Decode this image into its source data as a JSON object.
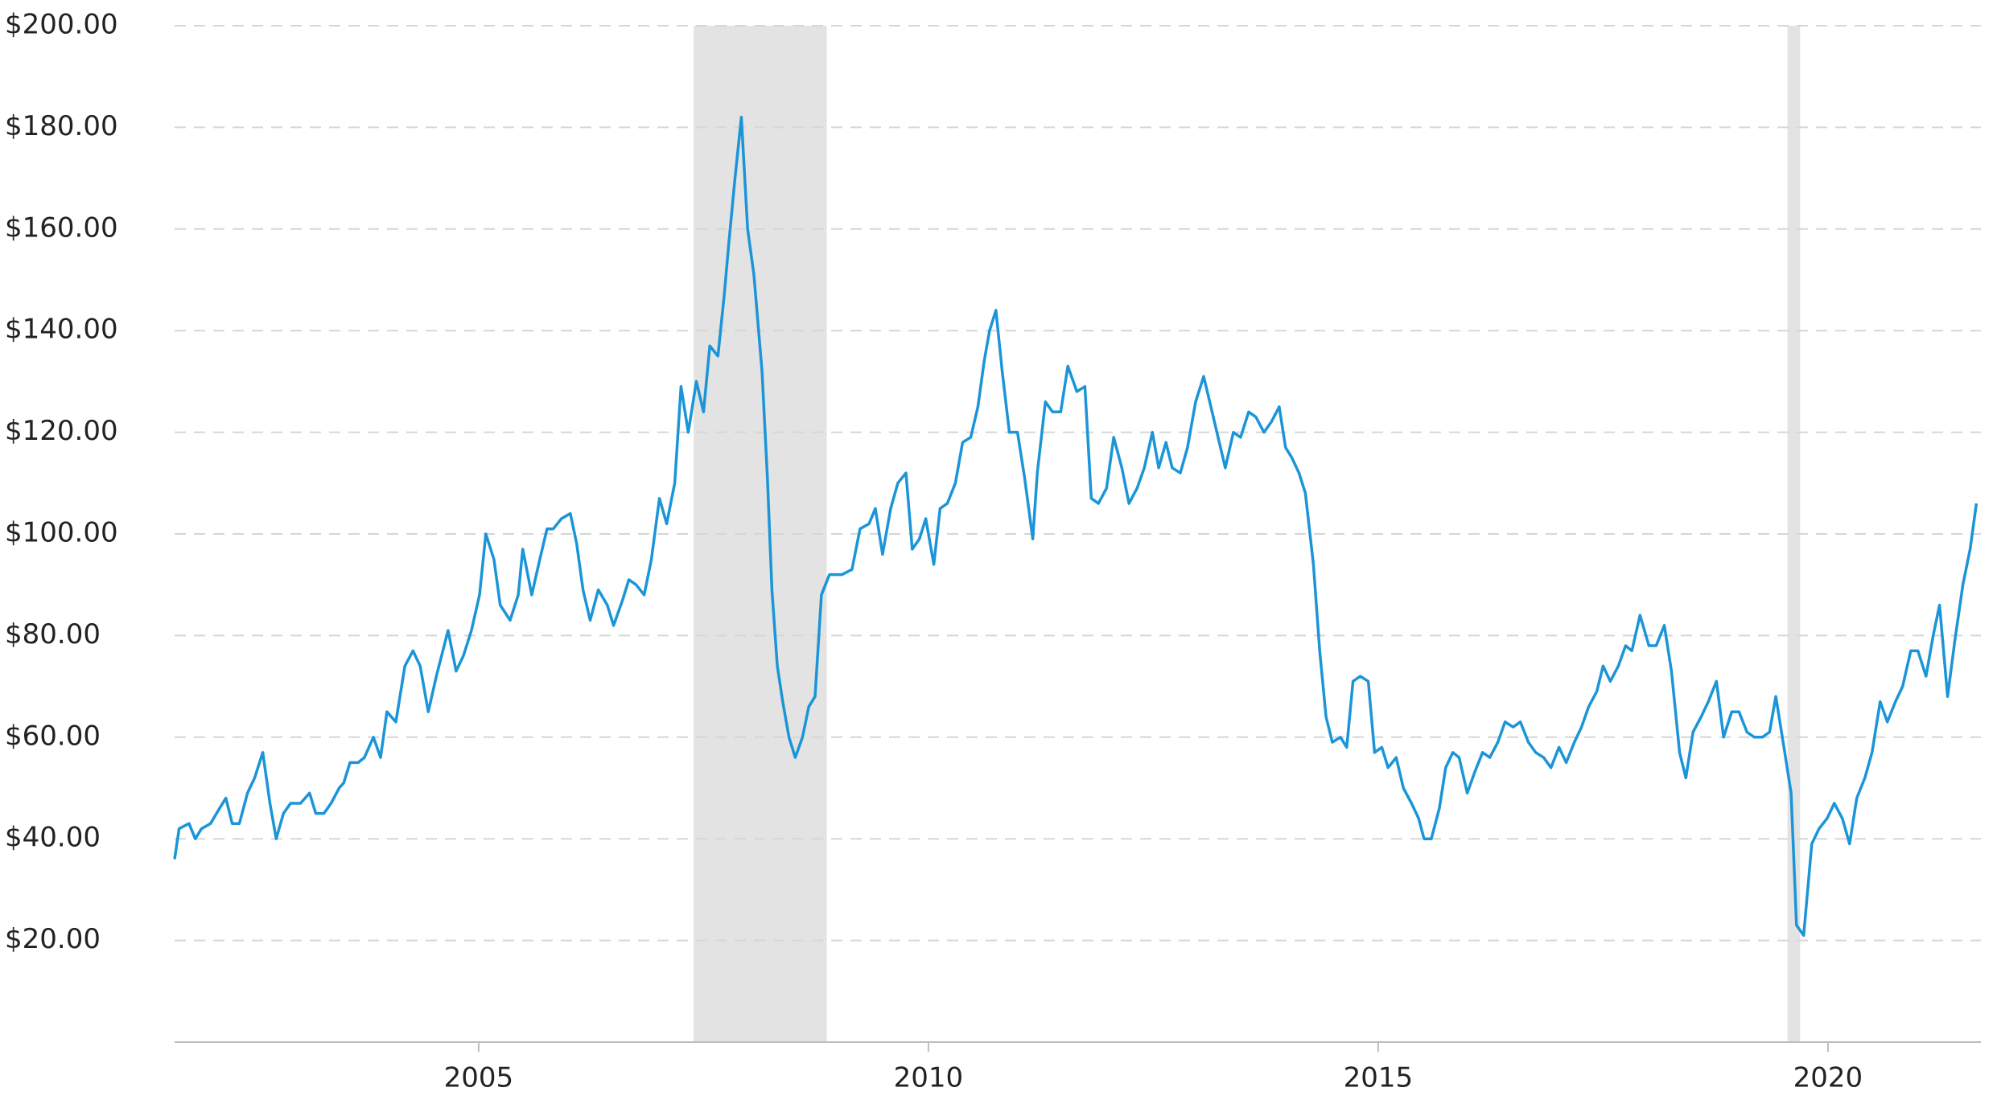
{
  "chart_data": {
    "type": "line",
    "x": [
      2001.62,
      2001.67,
      2001.78,
      2001.85,
      2001.92,
      2002.02,
      2002.12,
      2002.19,
      2002.26,
      2002.34,
      2002.43,
      2002.51,
      2002.6,
      2002.68,
      2002.75,
      2002.83,
      2002.91,
      2003.02,
      2003.12,
      2003.19,
      2003.28,
      2003.36,
      2003.45,
      2003.5,
      2003.57,
      2003.66,
      2003.73,
      2003.83,
      2003.91,
      2003.98,
      2004.08,
      2004.18,
      2004.27,
      2004.35,
      2004.44,
      2004.53,
      2004.66,
      2004.75,
      2004.83,
      2004.92,
      2005.01,
      2005.08,
      2005.17,
      2005.24,
      2005.35,
      2005.44,
      2005.49,
      2005.59,
      2005.68,
      2005.76,
      2005.83,
      2005.92,
      2006.02,
      2006.09,
      2006.16,
      2006.24,
      2006.33,
      2006.43,
      2006.5,
      2006.6,
      2006.67,
      2006.75,
      2006.84,
      2006.92,
      2007.01,
      2007.09,
      2007.18,
      2007.25,
      2007.33,
      2007.42,
      2007.5,
      2007.57,
      2007.66,
      2007.73,
      2007.78,
      2007.85,
      2007.92,
      2007.99,
      2008.06,
      2008.15,
      2008.21,
      2008.26,
      2008.32,
      2008.38,
      2008.45,
      2008.52,
      2008.6,
      2008.67,
      2008.74,
      2008.81,
      2008.9,
      2008.97,
      2009.04,
      2009.15,
      2009.24,
      2009.34,
      2009.41,
      2009.49,
      2009.58,
      2009.66,
      2009.75,
      2009.82,
      2009.9,
      2009.97,
      2010.06,
      2010.13,
      2010.21,
      2010.3,
      2010.38,
      2010.47,
      2010.55,
      2010.62,
      2010.68,
      2010.75,
      2010.82,
      2010.9,
      2010.99,
      2011.07,
      2011.16,
      2011.21,
      2011.3,
      2011.38,
      2011.47,
      2011.55,
      2011.65,
      2011.74,
      2011.81,
      2011.89,
      2011.98,
      2012.06,
      2012.15,
      2012.23,
      2012.32,
      2012.4,
      2012.49,
      2012.56,
      2012.64,
      2012.71,
      2012.8,
      2012.88,
      2012.97,
      2013.06,
      2013.14,
      2013.22,
      2013.3,
      2013.39,
      2013.47,
      2013.56,
      2013.64,
      2013.73,
      2013.81,
      2013.9,
      2013.97,
      2014.04,
      2014.12,
      2014.19,
      2014.28,
      2014.35,
      2014.42,
      2014.49,
      2014.58,
      2014.65,
      2014.72,
      2014.8,
      2014.89,
      2014.96,
      2015.04,
      2015.11,
      2015.2,
      2015.28,
      2015.37,
      2015.45,
      2015.51,
      2015.59,
      2015.68,
      2015.75,
      2015.83,
      2015.9,
      2015.99,
      2016.07,
      2016.16,
      2016.24,
      2016.33,
      2016.41,
      2016.5,
      2016.58,
      2016.67,
      2016.75,
      2016.84,
      2016.92,
      2017.01,
      2017.09,
      2017.18,
      2017.26,
      2017.34,
      2017.43,
      2017.5,
      2017.58,
      2017.67,
      2017.75,
      2017.82,
      2017.91,
      2018.01,
      2018.09,
      2018.18,
      2018.26,
      2018.35,
      2018.42,
      2018.5,
      2018.59,
      2018.67,
      2018.76,
      2018.84,
      2018.93,
      2019.01,
      2019.1,
      2019.18,
      2019.27,
      2019.35,
      2019.42,
      2019.51,
      2019.59,
      2019.65,
      2019.73,
      2019.82,
      2019.9,
      2019.99,
      2020.07,
      2020.16,
      2020.24,
      2020.32,
      2020.41,
      2020.49,
      2020.58,
      2020.66,
      2020.75,
      2020.83,
      2020.92,
      2021.0,
      2021.09,
      2021.17,
      2021.24,
      2021.33,
      2021.41,
      2021.5,
      2021.58,
      2021.65
    ],
    "series": [
      {
        "color": "#1b95d8",
        "values": [
          36,
          42,
          43,
          40,
          42,
          43,
          46,
          48,
          43,
          43,
          49,
          52,
          57,
          47,
          40,
          45,
          47,
          47,
          49,
          45,
          45,
          47,
          50,
          51,
          55,
          55,
          56,
          60,
          56,
          65,
          63,
          74,
          77,
          74,
          65,
          72,
          81,
          73,
          76,
          81,
          88,
          100,
          95,
          86,
          83,
          88,
          97,
          88,
          95,
          101,
          101,
          103,
          104,
          98,
          89,
          83,
          89,
          86,
          82,
          87,
          91,
          90,
          88,
          95,
          107,
          102,
          110,
          129,
          120,
          130,
          124,
          137,
          135,
          147,
          157,
          170,
          182,
          160,
          151,
          132,
          111,
          89,
          74,
          67,
          60,
          56,
          60,
          66,
          68,
          88,
          92,
          92,
          92,
          93,
          101,
          102,
          105,
          96,
          105,
          110,
          112,
          97,
          99,
          103,
          94,
          105,
          106,
          110,
          118,
          119,
          125,
          134,
          140,
          144,
          132,
          120,
          120,
          111,
          99,
          112,
          126,
          124,
          124,
          133,
          128,
          129,
          107,
          106,
          109,
          119,
          113,
          106,
          109,
          113,
          120,
          113,
          118,
          113,
          112,
          117,
          126,
          131,
          125,
          119,
          113,
          120,
          119,
          124,
          123,
          120,
          122,
          125,
          117,
          115,
          112,
          108,
          94,
          77,
          64,
          59,
          60,
          58,
          71,
          72,
          71,
          57,
          58,
          54,
          56,
          50,
          47,
          44,
          40,
          40,
          46,
          54,
          57,
          56,
          49,
          53,
          57,
          56,
          59,
          63,
          62,
          63,
          59,
          57,
          56,
          54,
          58,
          55,
          59,
          62,
          66,
          69,
          74,
          71,
          74,
          78,
          77,
          84,
          78,
          78,
          82,
          73,
          57,
          52,
          61,
          64,
          67,
          71,
          60,
          65,
          65,
          61,
          60,
          60,
          61,
          68,
          58,
          49,
          23,
          21,
          39,
          42,
          44,
          47,
          44,
          39,
          48,
          52,
          57,
          67,
          63,
          67,
          70,
          77,
          77,
          72,
          80,
          86,
          68,
          79,
          90,
          97,
          106
        ]
      }
    ],
    "recessions": [
      [
        2007.39,
        2008.87
      ],
      [
        2019.55,
        2019.69
      ]
    ],
    "recession_color": "#e3e3e3",
    "xlim": [
      2001.62,
      2021.7
    ],
    "xticks": [
      2005,
      2010,
      2015,
      2020
    ],
    "ylim": [
      0,
      200
    ],
    "yticks": [
      {
        "value": 20,
        "label": "$20.00"
      },
      {
        "value": 40,
        "label": "$40.00"
      },
      {
        "value": 60,
        "label": "$60.00"
      },
      {
        "value": 80,
        "label": "$80.00"
      },
      {
        "value": 100,
        "label": "$100.00"
      },
      {
        "value": 120,
        "label": "$120.00"
      },
      {
        "value": 140,
        "label": "$140.00"
      },
      {
        "value": 160,
        "label": "$160.00"
      },
      {
        "value": 180,
        "label": "$180.00"
      },
      {
        "value": 200,
        "label": "$200.00"
      }
    ],
    "grid": true
  }
}
